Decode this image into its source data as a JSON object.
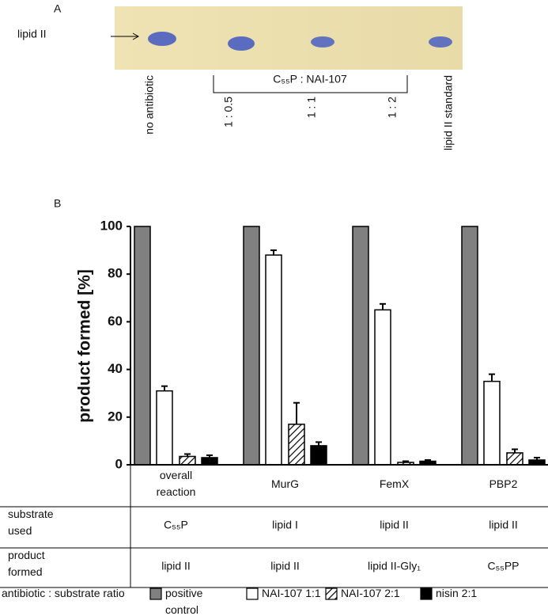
{
  "panel_a": {
    "label": "A",
    "band_label": "lipid II",
    "bracket_label": "C₅₅P : NAI-107",
    "lanes": [
      "no antibiotic",
      "1 : 0.5",
      "1 : 1",
      "1 : 2",
      "lipid II standard"
    ]
  },
  "panel_b_label": "B",
  "chart_data": {
    "type": "bar",
    "ylabel": "product formed [%]",
    "categories": [
      "overall reaction",
      "MurG",
      "FemX",
      "PBP2"
    ],
    "legend_title": "antibiotic : substrate ratio",
    "series": [
      {
        "name": "positive control",
        "color": "#808080",
        "values": [
          100,
          100,
          100,
          100
        ]
      },
      {
        "name": "NAI-107 1:1",
        "color": "#ffffff",
        "values": [
          31,
          88,
          65,
          35
        ],
        "errors": [
          2,
          2,
          2.5,
          3
        ]
      },
      {
        "name": "NAI-107 2:1",
        "color": "hatch",
        "values": [
          3.5,
          17,
          1,
          5
        ],
        "errors": [
          1,
          9,
          0.5,
          1.5
        ]
      },
      {
        "name": "nisin 2:1",
        "color": "#000000",
        "values": [
          3,
          8,
          1.5,
          2
        ],
        "errors": [
          1,
          1.5,
          0.5,
          1
        ]
      }
    ],
    "ylim": [
      0,
      100
    ],
    "yticks": [
      0,
      20,
      40,
      60,
      80,
      100
    ],
    "grid": false
  },
  "table": {
    "rows": [
      {
        "header": "substrate used",
        "cells": [
          "C₅₅P",
          "lipid I",
          "lipid II",
          "lipid II"
        ]
      },
      {
        "header": "product formed",
        "cells": [
          "lipid II",
          "lipid II",
          "lipid II-Gly₁",
          "C₅₅PP"
        ]
      }
    ]
  }
}
